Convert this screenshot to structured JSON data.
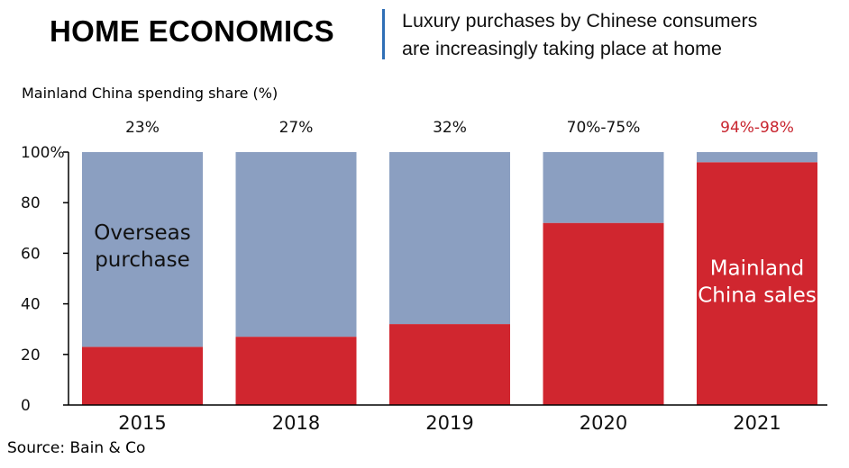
{
  "header": {
    "title": "HOME ECONOMICS",
    "subtitle_line1": "Luxury purchases by Chinese consumers",
    "subtitle_line2": "are increasingly taking place at home"
  },
  "source": "Source: Bain & Co",
  "chart_data": {
    "type": "bar",
    "stacked": true,
    "ylabel": "Mainland China spending share (%)",
    "ylim": [
      0,
      100
    ],
    "yticks": [
      0,
      20,
      40,
      60,
      80,
      100
    ],
    "ytick_labels": [
      "0",
      "20",
      "40",
      "60",
      "80",
      "100%"
    ],
    "categories": [
      "2015",
      "2018",
      "2019",
      "2020",
      "2021"
    ],
    "top_labels": [
      "23%",
      "27%",
      "32%",
      "70%-75%",
      "94%-98%"
    ],
    "top_label_colors": [
      "#111111",
      "#111111",
      "#111111",
      "#111111",
      "#c8252f"
    ],
    "series": [
      {
        "name": "Mainland China sales",
        "values": [
          23,
          27,
          32,
          72,
          96
        ],
        "color": "#d0262f"
      },
      {
        "name": "Overseas purchase",
        "values": [
          77,
          73,
          68,
          28,
          4
        ],
        "color": "#8b9fc1"
      }
    ],
    "annotations": [
      {
        "lines": [
          "Overseas",
          "purchase"
        ],
        "category_index": 0,
        "y": 63,
        "color": "#111111"
      },
      {
        "lines": [
          "Mainland",
          "China sales"
        ],
        "category_index": 4,
        "y": 49,
        "color": "#ffffff"
      }
    ]
  }
}
